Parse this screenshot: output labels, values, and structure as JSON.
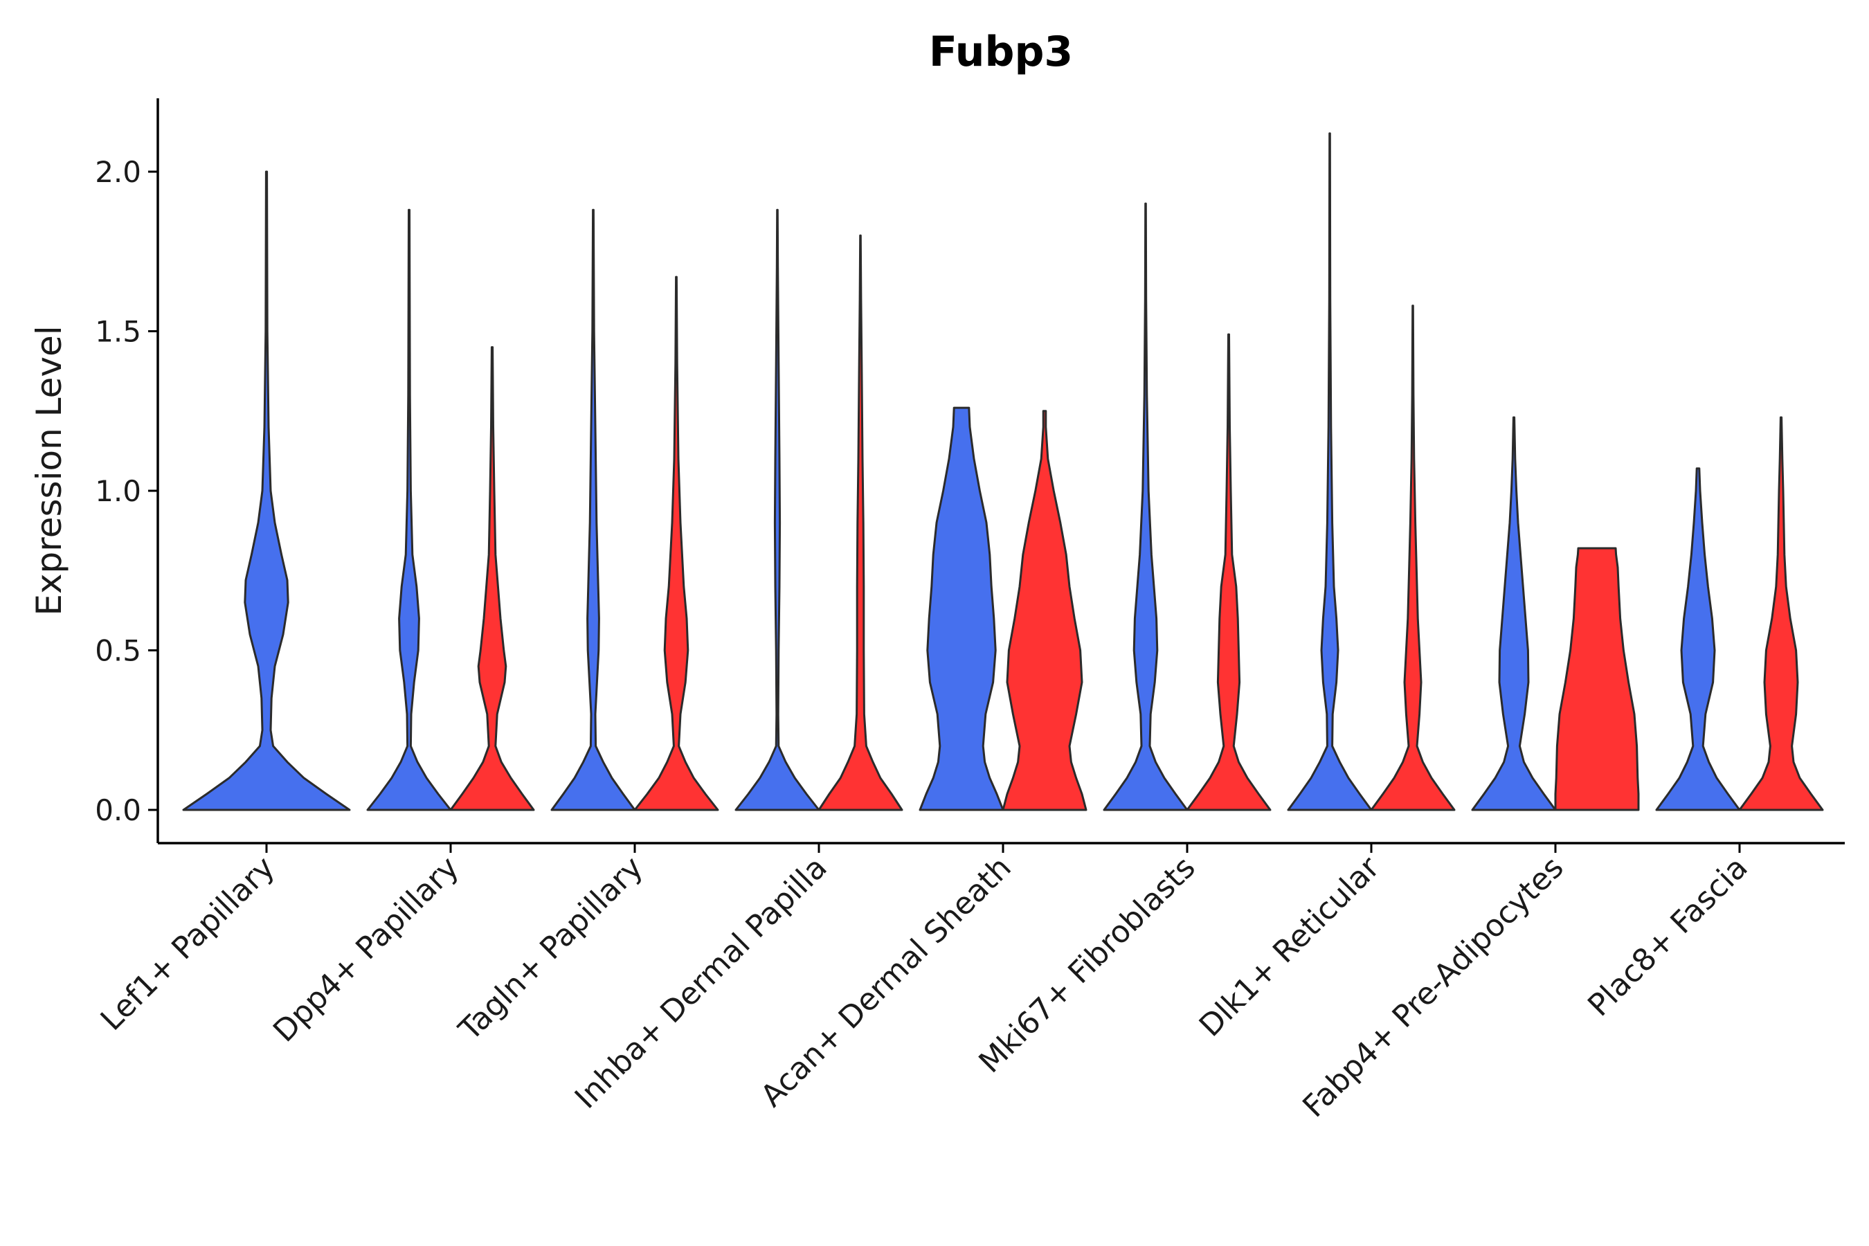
{
  "chart_data": {
    "type": "violin",
    "title": "Fubp3",
    "xlabel": "",
    "ylabel": "Expression Level",
    "ylim": [
      -0.1,
      2.22
    ],
    "yticks": [
      "0.0",
      "0.5",
      "1.0",
      "1.5",
      "2.0"
    ],
    "ytick_values": [
      0,
      0.5,
      1.0,
      1.5,
      2.0
    ],
    "categories": [
      "Lef1+ Papillary",
      "Dpp4+ Papillary",
      "Tagln+ Papillary",
      "Inhba+ Dermal Papilla",
      "Acan+ Dermal Sheath",
      "Mki67+ Fibroblasts",
      "Dlk1+ Reticular",
      "Fabp4+ Pre-Adipocytes",
      "Plac8+ Fascia"
    ],
    "series_colors": {
      "blue": "#4670EE",
      "red": "#FF3333"
    },
    "violins": [
      {
        "category": "Lef1+ Papillary",
        "color": "blue",
        "max": 2.0,
        "profile": [
          [
            0,
            1
          ],
          [
            0.05,
            0.72
          ],
          [
            0.1,
            0.45
          ],
          [
            0.15,
            0.25
          ],
          [
            0.2,
            0.08
          ],
          [
            0.25,
            0.05
          ],
          [
            0.35,
            0.06
          ],
          [
            0.45,
            0.1
          ],
          [
            0.55,
            0.2
          ],
          [
            0.65,
            0.26
          ],
          [
            0.72,
            0.25
          ],
          [
            0.8,
            0.18
          ],
          [
            0.9,
            0.1
          ],
          [
            1.0,
            0.05
          ],
          [
            1.2,
            0.025
          ],
          [
            1.5,
            0.01
          ],
          [
            2.0,
            0.005
          ]
        ]
      },
      {
        "category": "Dpp4+ Papillary",
        "color": "blue",
        "max": 1.88,
        "profile": [
          [
            0,
            1
          ],
          [
            0.05,
            0.7
          ],
          [
            0.1,
            0.42
          ],
          [
            0.15,
            0.2
          ],
          [
            0.2,
            0.04
          ],
          [
            0.3,
            0.05
          ],
          [
            0.4,
            0.12
          ],
          [
            0.5,
            0.22
          ],
          [
            0.6,
            0.24
          ],
          [
            0.7,
            0.18
          ],
          [
            0.8,
            0.08
          ],
          [
            1.0,
            0.04
          ],
          [
            1.3,
            0.02
          ],
          [
            1.88,
            0.008
          ]
        ]
      },
      {
        "category": "Dpp4+ Papillary",
        "color": "red",
        "max": 1.45,
        "profile": [
          [
            0,
            1
          ],
          [
            0.05,
            0.72
          ],
          [
            0.1,
            0.45
          ],
          [
            0.15,
            0.22
          ],
          [
            0.2,
            0.08
          ],
          [
            0.3,
            0.12
          ],
          [
            0.4,
            0.3
          ],
          [
            0.45,
            0.33
          ],
          [
            0.5,
            0.28
          ],
          [
            0.6,
            0.2
          ],
          [
            0.7,
            0.14
          ],
          [
            0.8,
            0.08
          ],
          [
            1.0,
            0.05
          ],
          [
            1.2,
            0.025
          ],
          [
            1.45,
            0.01
          ]
        ]
      },
      {
        "category": "Tagln+ Papillary",
        "color": "blue",
        "max": 1.88,
        "profile": [
          [
            0,
            1
          ],
          [
            0.05,
            0.72
          ],
          [
            0.1,
            0.45
          ],
          [
            0.15,
            0.24
          ],
          [
            0.2,
            0.06
          ],
          [
            0.3,
            0.05
          ],
          [
            0.4,
            0.09
          ],
          [
            0.5,
            0.13
          ],
          [
            0.6,
            0.14
          ],
          [
            0.7,
            0.12
          ],
          [
            0.9,
            0.08
          ],
          [
            1.2,
            0.05
          ],
          [
            1.5,
            0.02
          ],
          [
            1.88,
            0.006
          ]
        ]
      },
      {
        "category": "Tagln+ Papillary",
        "color": "red",
        "max": 1.67,
        "profile": [
          [
            0,
            1
          ],
          [
            0.05,
            0.7
          ],
          [
            0.1,
            0.42
          ],
          [
            0.15,
            0.22
          ],
          [
            0.2,
            0.06
          ],
          [
            0.3,
            0.1
          ],
          [
            0.4,
            0.22
          ],
          [
            0.5,
            0.28
          ],
          [
            0.6,
            0.25
          ],
          [
            0.7,
            0.18
          ],
          [
            0.9,
            0.1
          ],
          [
            1.1,
            0.05
          ],
          [
            1.4,
            0.02
          ],
          [
            1.67,
            0.006
          ]
        ]
      },
      {
        "category": "Inhba+ Dermal Papilla",
        "color": "blue",
        "max": 1.88,
        "profile": [
          [
            0,
            1
          ],
          [
            0.05,
            0.7
          ],
          [
            0.1,
            0.42
          ],
          [
            0.15,
            0.2
          ],
          [
            0.2,
            0.03
          ],
          [
            0.3,
            0.02
          ],
          [
            0.5,
            0.03
          ],
          [
            0.7,
            0.05
          ],
          [
            0.9,
            0.06
          ],
          [
            1.1,
            0.05
          ],
          [
            1.4,
            0.03
          ],
          [
            1.7,
            0.012
          ],
          [
            1.88,
            0.005
          ]
        ]
      },
      {
        "category": "Inhba+ Dermal Papilla",
        "color": "red",
        "max": 1.8,
        "profile": [
          [
            0,
            1
          ],
          [
            0.05,
            0.75
          ],
          [
            0.1,
            0.48
          ],
          [
            0.15,
            0.3
          ],
          [
            0.2,
            0.14
          ],
          [
            0.3,
            0.09
          ],
          [
            0.5,
            0.08
          ],
          [
            0.7,
            0.08
          ],
          [
            0.9,
            0.07
          ],
          [
            1.1,
            0.05
          ],
          [
            1.4,
            0.03
          ],
          [
            1.6,
            0.015
          ],
          [
            1.8,
            0.005
          ]
        ]
      },
      {
        "category": "Acan+ Dermal Sheath",
        "color": "blue",
        "max": 1.26,
        "profile": [
          [
            0,
            1
          ],
          [
            0.05,
            0.85
          ],
          [
            0.1,
            0.68
          ],
          [
            0.15,
            0.56
          ],
          [
            0.2,
            0.52
          ],
          [
            0.3,
            0.58
          ],
          [
            0.4,
            0.76
          ],
          [
            0.5,
            0.82
          ],
          [
            0.6,
            0.78
          ],
          [
            0.7,
            0.72
          ],
          [
            0.8,
            0.68
          ],
          [
            0.9,
            0.6
          ],
          [
            1.0,
            0.44
          ],
          [
            1.1,
            0.3
          ],
          [
            1.2,
            0.2
          ],
          [
            1.26,
            0.18
          ]
        ]
      },
      {
        "category": "Acan+ Dermal Sheath",
        "color": "red",
        "max": 1.25,
        "profile": [
          [
            0,
            1
          ],
          [
            0.05,
            0.9
          ],
          [
            0.1,
            0.76
          ],
          [
            0.15,
            0.64
          ],
          [
            0.2,
            0.6
          ],
          [
            0.3,
            0.76
          ],
          [
            0.4,
            0.9
          ],
          [
            0.5,
            0.86
          ],
          [
            0.6,
            0.72
          ],
          [
            0.7,
            0.6
          ],
          [
            0.8,
            0.52
          ],
          [
            0.9,
            0.38
          ],
          [
            1.0,
            0.22
          ],
          [
            1.1,
            0.08
          ],
          [
            1.2,
            0.03
          ],
          [
            1.25,
            0.03
          ]
        ]
      },
      {
        "category": "Mki67+ Fibroblasts",
        "color": "blue",
        "max": 1.9,
        "profile": [
          [
            0,
            1
          ],
          [
            0.05,
            0.72
          ],
          [
            0.1,
            0.45
          ],
          [
            0.15,
            0.24
          ],
          [
            0.2,
            0.1
          ],
          [
            0.3,
            0.12
          ],
          [
            0.4,
            0.22
          ],
          [
            0.5,
            0.28
          ],
          [
            0.6,
            0.26
          ],
          [
            0.7,
            0.2
          ],
          [
            0.8,
            0.14
          ],
          [
            1.0,
            0.07
          ],
          [
            1.3,
            0.03
          ],
          [
            1.6,
            0.012
          ],
          [
            1.9,
            0.005
          ]
        ]
      },
      {
        "category": "Mki67+ Fibroblasts",
        "color": "red",
        "max": 1.49,
        "profile": [
          [
            0,
            1
          ],
          [
            0.05,
            0.72
          ],
          [
            0.1,
            0.45
          ],
          [
            0.15,
            0.24
          ],
          [
            0.2,
            0.12
          ],
          [
            0.3,
            0.2
          ],
          [
            0.4,
            0.26
          ],
          [
            0.5,
            0.24
          ],
          [
            0.6,
            0.22
          ],
          [
            0.7,
            0.18
          ],
          [
            0.8,
            0.08
          ],
          [
            1.0,
            0.05
          ],
          [
            1.2,
            0.025
          ],
          [
            1.49,
            0.008
          ]
        ]
      },
      {
        "category": "Dlk1+ Reticular",
        "color": "blue",
        "max": 2.12,
        "profile": [
          [
            0,
            1
          ],
          [
            0.05,
            0.72
          ],
          [
            0.1,
            0.45
          ],
          [
            0.15,
            0.24
          ],
          [
            0.2,
            0.06
          ],
          [
            0.3,
            0.07
          ],
          [
            0.4,
            0.16
          ],
          [
            0.5,
            0.2
          ],
          [
            0.6,
            0.16
          ],
          [
            0.7,
            0.1
          ],
          [
            0.9,
            0.06
          ],
          [
            1.2,
            0.03
          ],
          [
            1.6,
            0.012
          ],
          [
            2.12,
            0.005
          ]
        ]
      },
      {
        "category": "Dlk1+ Reticular",
        "color": "red",
        "max": 1.58,
        "profile": [
          [
            0,
            1
          ],
          [
            0.05,
            0.72
          ],
          [
            0.1,
            0.45
          ],
          [
            0.15,
            0.24
          ],
          [
            0.2,
            0.1
          ],
          [
            0.3,
            0.16
          ],
          [
            0.4,
            0.2
          ],
          [
            0.5,
            0.16
          ],
          [
            0.6,
            0.12
          ],
          [
            0.7,
            0.1
          ],
          [
            0.9,
            0.06
          ],
          [
            1.1,
            0.03
          ],
          [
            1.3,
            0.015
          ],
          [
            1.58,
            0.005
          ]
        ]
      },
      {
        "category": "Fabp4+ Pre-Adipocytes",
        "color": "blue",
        "max": 1.23,
        "profile": [
          [
            0,
            1
          ],
          [
            0.05,
            0.72
          ],
          [
            0.1,
            0.45
          ],
          [
            0.15,
            0.24
          ],
          [
            0.2,
            0.14
          ],
          [
            0.3,
            0.26
          ],
          [
            0.4,
            0.35
          ],
          [
            0.5,
            0.34
          ],
          [
            0.6,
            0.28
          ],
          [
            0.7,
            0.22
          ],
          [
            0.8,
            0.16
          ],
          [
            0.9,
            0.1
          ],
          [
            1.0,
            0.06
          ],
          [
            1.1,
            0.03
          ],
          [
            1.23,
            0.01
          ]
        ]
      },
      {
        "category": "Fabp4+ Pre-Adipocytes",
        "color": "red",
        "max": 0.82,
        "profile": [
          [
            0,
            1
          ],
          [
            0.05,
            1
          ],
          [
            0.1,
            0.98
          ],
          [
            0.2,
            0.96
          ],
          [
            0.3,
            0.9
          ],
          [
            0.4,
            0.76
          ],
          [
            0.5,
            0.64
          ],
          [
            0.6,
            0.56
          ],
          [
            0.7,
            0.52
          ],
          [
            0.76,
            0.5
          ],
          [
            0.8,
            0.46
          ],
          [
            0.82,
            0.45
          ]
        ]
      },
      {
        "category": "Plac8+ Fascia",
        "color": "blue",
        "max": 1.07,
        "profile": [
          [
            0,
            1
          ],
          [
            0.05,
            0.72
          ],
          [
            0.1,
            0.45
          ],
          [
            0.15,
            0.26
          ],
          [
            0.2,
            0.12
          ],
          [
            0.3,
            0.18
          ],
          [
            0.4,
            0.36
          ],
          [
            0.5,
            0.4
          ],
          [
            0.6,
            0.34
          ],
          [
            0.7,
            0.24
          ],
          [
            0.8,
            0.16
          ],
          [
            0.9,
            0.1
          ],
          [
            1.0,
            0.05
          ],
          [
            1.07,
            0.03
          ]
        ]
      },
      {
        "category": "Plac8+ Fascia",
        "color": "red",
        "max": 1.23,
        "profile": [
          [
            0,
            1
          ],
          [
            0.05,
            0.72
          ],
          [
            0.1,
            0.45
          ],
          [
            0.15,
            0.3
          ],
          [
            0.2,
            0.26
          ],
          [
            0.3,
            0.36
          ],
          [
            0.4,
            0.4
          ],
          [
            0.5,
            0.36
          ],
          [
            0.6,
            0.22
          ],
          [
            0.7,
            0.12
          ],
          [
            0.8,
            0.08
          ],
          [
            1.0,
            0.05
          ],
          [
            1.1,
            0.03
          ],
          [
            1.23,
            0.01
          ]
        ]
      }
    ]
  }
}
